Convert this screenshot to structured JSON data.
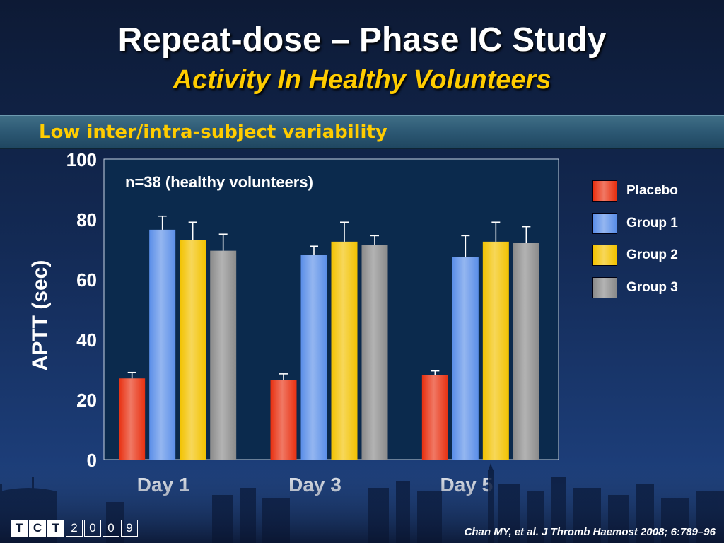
{
  "slide": {
    "title": "Repeat-dose – Phase IC Study",
    "subtitle": "Activity In Healthy Volunteers",
    "band_text": "Low inter/intra-subject variability",
    "citation": "Chan MY, et al. J Thromb Haemost 2008; 6:789–96",
    "logo": {
      "letters": [
        "T",
        "C",
        "T"
      ],
      "year_digits": [
        "2",
        "0",
        "0",
        "9"
      ]
    }
  },
  "chart_data": {
    "type": "bar",
    "title": "",
    "annotation": "n=38 (healthy volunteers)",
    "xlabel": "",
    "ylabel": "APTT (sec)",
    "ylim": [
      0,
      100
    ],
    "yticks": [
      0,
      20,
      40,
      60,
      80,
      100
    ],
    "grid": false,
    "legend_position": "right",
    "categories": [
      "Day 1",
      "Day 3",
      "Day 5"
    ],
    "series": [
      {
        "name": "Placebo",
        "color": "#e83010",
        "values": [
          27,
          26.5,
          28
        ],
        "errors": [
          2,
          2,
          1.5
        ]
      },
      {
        "name": "Group 1",
        "color": "#5a8ee8",
        "values": [
          76.5,
          68,
          67.5
        ],
        "errors": [
          4.5,
          3,
          7
        ]
      },
      {
        "name": "Group 2",
        "color": "#f2c200",
        "values": [
          73,
          72.5,
          72.5
        ],
        "errors": [
          6,
          6.5,
          6.5
        ]
      },
      {
        "name": "Group 3",
        "color": "#8a8a8a",
        "values": [
          69.5,
          71.5,
          72
        ],
        "errors": [
          5.5,
          3,
          5.5
        ]
      }
    ]
  }
}
